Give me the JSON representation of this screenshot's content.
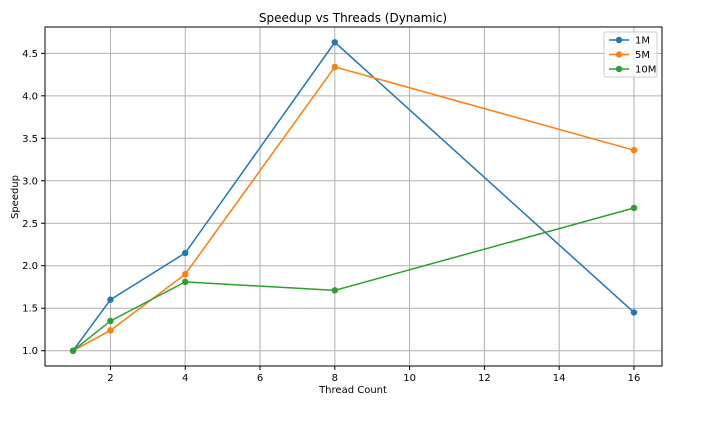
{
  "chart_data": {
    "type": "line",
    "title": "Speedup vs Threads (Dynamic)",
    "xlabel": "Thread Count",
    "ylabel": "Speedup",
    "x": [
      1,
      2,
      4,
      8,
      16
    ],
    "xlim": [
      0.25,
      16.75
    ],
    "ylim": [
      0.82,
      4.81
    ],
    "xticks": [
      2,
      4,
      6,
      8,
      10,
      12,
      14,
      16
    ],
    "xtick_labels": [
      "2",
      "4",
      "6",
      "8",
      "10",
      "12",
      "14",
      "16"
    ],
    "yticks": [
      1.0,
      1.5,
      2.0,
      2.5,
      3.0,
      3.5,
      4.0,
      4.5
    ],
    "ytick_labels": [
      "1.0",
      "1.5",
      "2.0",
      "2.5",
      "3.0",
      "3.5",
      "4.0",
      "4.5"
    ],
    "grid": true,
    "legend_position": "top-right",
    "series": [
      {
        "name": "1M",
        "color": "#1f77b4",
        "values": [
          1.0,
          1.6,
          2.15,
          4.63,
          1.45
        ]
      },
      {
        "name": "5M",
        "color": "#ff7f0e",
        "values": [
          1.0,
          1.24,
          1.9,
          4.34,
          3.36
        ]
      },
      {
        "name": "10M",
        "color": "#2ca02c",
        "values": [
          1.0,
          1.35,
          1.81,
          1.71,
          2.68
        ]
      }
    ]
  }
}
